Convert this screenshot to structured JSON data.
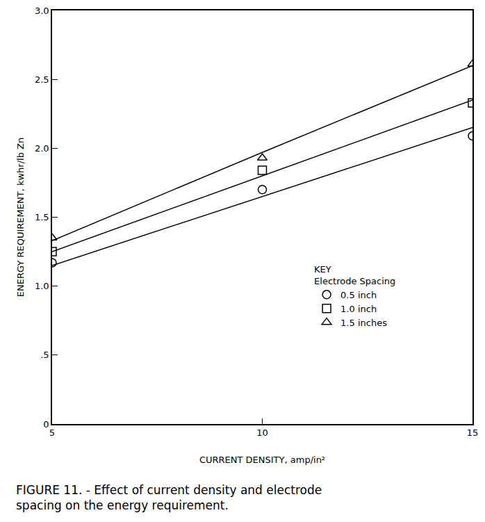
{
  "chart_data": {
    "type": "scatter",
    "title": [
      "FIGURE 11. - Effect of current density and electrode",
      "spacing on the energy requirement."
    ],
    "x_label": "CURRENT DENSITY, amp/in²",
    "y_label": "ENERGY REQUIREMENT, kwhr/lb Zn",
    "x": [
      5,
      10,
      15
    ],
    "series": [
      {
        "name": "0.5 inch",
        "color": "#000000",
        "marker": "circle-open",
        "line_style": "solid",
        "values": [
          1.17,
          1.7,
          2.09
        ],
        "fit_values": [
          1.15,
          1.65,
          2.15
        ]
      },
      {
        "name": "1.0 inch",
        "color": "#000000",
        "marker": "square-open",
        "line_style": "solid",
        "values": [
          1.25,
          1.84,
          2.33
        ],
        "fit_values": [
          1.25,
          1.8,
          2.35
        ]
      },
      {
        "name": "1.5 inches",
        "color": "#000000",
        "marker": "triangle-up-open",
        "line_style": "solid",
        "values": [
          1.35,
          1.93,
          2.61
        ],
        "fit_values": [
          1.33,
          1.97,
          2.6
        ]
      }
    ],
    "legend_title": [
      "KEY",
      "Electrode Spacing"
    ],
    "legend": "lower right",
    "xlim": [
      5,
      15
    ],
    "xticks": [
      5,
      10,
      15
    ],
    "ylim": [
      0,
      3.0
    ],
    "yticks": [
      0,
      {
        "value": 0.5,
        "label": ".5"
      },
      {
        "value": 1.0,
        "label": "1.0"
      },
      1.5,
      {
        "value": 2.0,
        "label": "2.0"
      },
      2.5,
      {
        "value": 3.0,
        "label": "3.0"
      }
    ],
    "grid": false
  }
}
